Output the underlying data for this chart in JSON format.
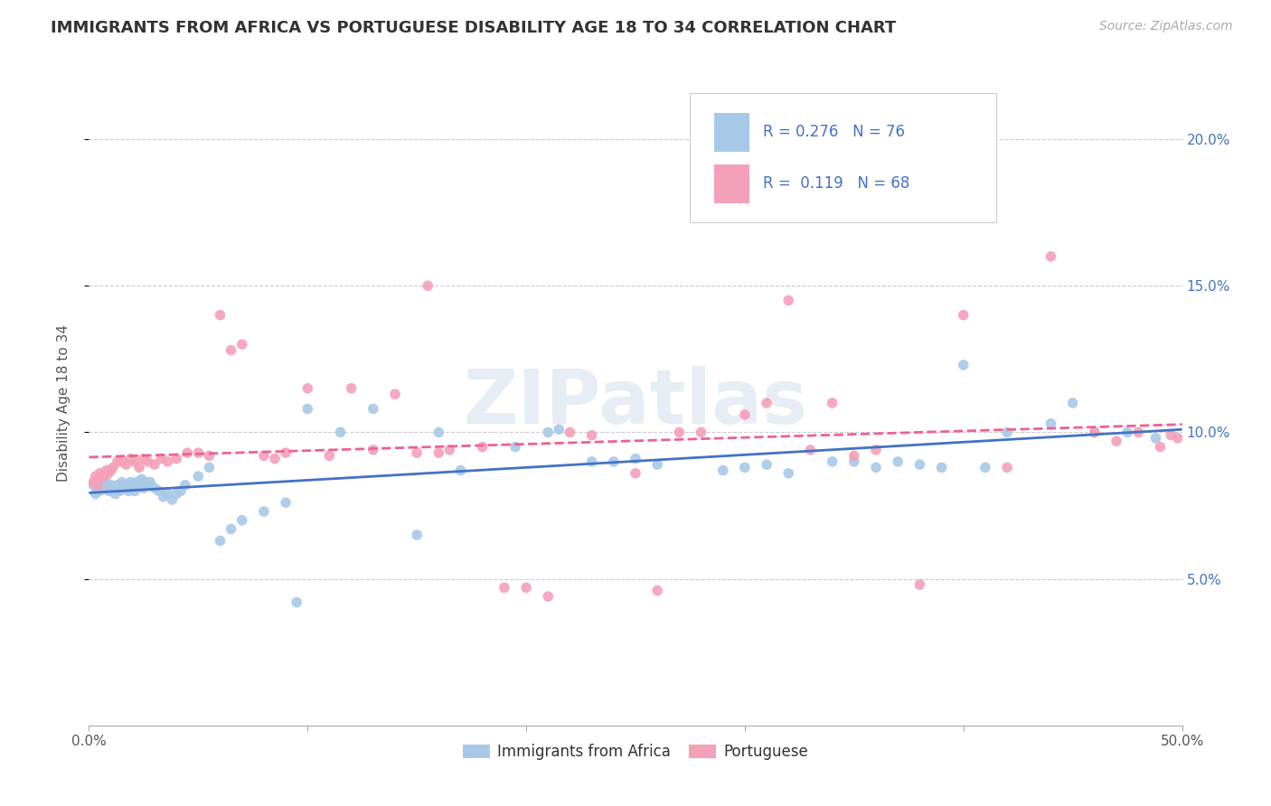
{
  "title": "IMMIGRANTS FROM AFRICA VS PORTUGUESE DISABILITY AGE 18 TO 34 CORRELATION CHART",
  "source": "Source: ZipAtlas.com",
  "ylabel": "Disability Age 18 to 34",
  "xlim": [
    0.0,
    0.5
  ],
  "ylim": [
    0.0,
    0.22
  ],
  "xticks": [
    0.0,
    0.1,
    0.2,
    0.3,
    0.4,
    0.5
  ],
  "xtick_labels": [
    "0.0%",
    "",
    "",
    "",
    "",
    "50.0%"
  ],
  "yticks": [
    0.05,
    0.1,
    0.15,
    0.2
  ],
  "ytick_labels": [
    "5.0%",
    "10.0%",
    "15.0%",
    "20.0%"
  ],
  "series1_label": "Immigrants from Africa",
  "series2_label": "Portuguese",
  "series1_color": "#a8c8e8",
  "series2_color": "#f4a0b8",
  "series1_line_color": "#4472c4",
  "series2_line_color": "#f06090",
  "series1_R": 0.276,
  "series1_N": 76,
  "series2_R": 0.119,
  "series2_N": 68,
  "legend_color": "#4472c4",
  "watermark": "ZIPatlas",
  "series1_x": [
    0.002,
    0.003,
    0.004,
    0.005,
    0.006,
    0.007,
    0.008,
    0.009,
    0.01,
    0.011,
    0.012,
    0.013,
    0.014,
    0.015,
    0.016,
    0.017,
    0.018,
    0.019,
    0.02,
    0.021,
    0.022,
    0.023,
    0.024,
    0.025,
    0.026,
    0.027,
    0.028,
    0.03,
    0.032,
    0.034,
    0.036,
    0.038,
    0.04,
    0.042,
    0.044,
    0.05,
    0.055,
    0.06,
    0.065,
    0.07,
    0.08,
    0.09,
    0.095,
    0.1,
    0.115,
    0.13,
    0.15,
    0.16,
    0.17,
    0.195,
    0.21,
    0.215,
    0.23,
    0.24,
    0.25,
    0.26,
    0.29,
    0.3,
    0.31,
    0.32,
    0.34,
    0.35,
    0.36,
    0.37,
    0.38,
    0.39,
    0.4,
    0.41,
    0.42,
    0.44,
    0.45,
    0.46,
    0.475,
    0.488
  ],
  "series1_y": [
    0.082,
    0.079,
    0.081,
    0.08,
    0.082,
    0.081,
    0.083,
    0.08,
    0.082,
    0.081,
    0.079,
    0.082,
    0.08,
    0.083,
    0.082,
    0.081,
    0.08,
    0.083,
    0.082,
    0.08,
    0.083,
    0.082,
    0.084,
    0.081,
    0.083,
    0.082,
    0.083,
    0.081,
    0.08,
    0.078,
    0.079,
    0.077,
    0.079,
    0.08,
    0.082,
    0.085,
    0.088,
    0.063,
    0.067,
    0.07,
    0.073,
    0.076,
    0.042,
    0.108,
    0.1,
    0.108,
    0.065,
    0.1,
    0.087,
    0.095,
    0.1,
    0.101,
    0.09,
    0.09,
    0.091,
    0.089,
    0.087,
    0.088,
    0.089,
    0.086,
    0.09,
    0.09,
    0.088,
    0.09,
    0.089,
    0.088,
    0.123,
    0.088,
    0.1,
    0.103,
    0.11,
    0.1,
    0.1,
    0.098
  ],
  "series2_x": [
    0.002,
    0.003,
    0.004,
    0.005,
    0.006,
    0.007,
    0.008,
    0.009,
    0.01,
    0.011,
    0.013,
    0.015,
    0.017,
    0.019,
    0.021,
    0.023,
    0.025,
    0.027,
    0.03,
    0.033,
    0.036,
    0.04,
    0.045,
    0.05,
    0.055,
    0.06,
    0.065,
    0.07,
    0.08,
    0.085,
    0.09,
    0.1,
    0.11,
    0.12,
    0.13,
    0.14,
    0.15,
    0.155,
    0.16,
    0.165,
    0.18,
    0.19,
    0.2,
    0.21,
    0.22,
    0.23,
    0.25,
    0.26,
    0.27,
    0.28,
    0.3,
    0.31,
    0.32,
    0.33,
    0.34,
    0.35,
    0.36,
    0.38,
    0.4,
    0.42,
    0.44,
    0.46,
    0.47,
    0.48,
    0.49,
    0.495,
    0.498
  ],
  "series2_y": [
    0.083,
    0.085,
    0.082,
    0.086,
    0.085,
    0.085,
    0.087,
    0.086,
    0.087,
    0.088,
    0.09,
    0.09,
    0.089,
    0.091,
    0.09,
    0.088,
    0.091,
    0.09,
    0.089,
    0.091,
    0.09,
    0.091,
    0.093,
    0.093,
    0.092,
    0.14,
    0.128,
    0.13,
    0.092,
    0.091,
    0.093,
    0.115,
    0.092,
    0.115,
    0.094,
    0.113,
    0.093,
    0.15,
    0.093,
    0.094,
    0.095,
    0.047,
    0.047,
    0.044,
    0.1,
    0.099,
    0.086,
    0.046,
    0.1,
    0.1,
    0.106,
    0.11,
    0.145,
    0.094,
    0.11,
    0.092,
    0.094,
    0.048,
    0.14,
    0.088,
    0.16,
    0.1,
    0.097,
    0.1,
    0.095,
    0.099,
    0.098
  ]
}
